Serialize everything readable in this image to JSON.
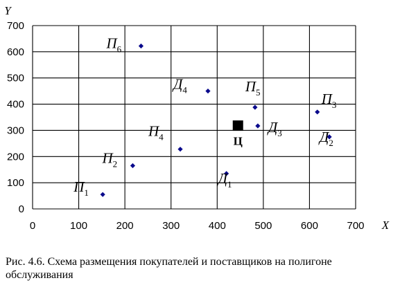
{
  "chart_data": {
    "type": "scatter",
    "xlabel": "X",
    "ylabel": "Y",
    "xlim": [
      0,
      700
    ],
    "ylim": [
      0,
      700
    ],
    "xticks": [
      "0",
      "100",
      "200",
      "300",
      "400",
      "500",
      "600",
      "700"
    ],
    "yticks": [
      "0",
      "100",
      "200",
      "300",
      "400",
      "500",
      "600",
      "700"
    ],
    "grid": true,
    "marker_color": "#0a0a8c",
    "center_color": "#000000",
    "points": [
      {
        "id": "p1",
        "letter": "П",
        "sub": "1",
        "x": 152,
        "y": 55
      },
      {
        "id": "p2",
        "letter": "П",
        "sub": "2",
        "x": 217,
        "y": 165
      },
      {
        "id": "p3",
        "letter": "П",
        "sub": "3",
        "x": 617,
        "y": 370
      },
      {
        "id": "p4",
        "letter": "П",
        "sub": "4",
        "x": 320,
        "y": 228
      },
      {
        "id": "p5",
        "letter": "П",
        "sub": "5",
        "x": 482,
        "y": 388
      },
      {
        "id": "p6",
        "letter": "П",
        "sub": "6",
        "x": 235,
        "y": 622
      },
      {
        "id": "d1",
        "letter": "Д",
        "sub": "1",
        "x": 420,
        "y": 135
      },
      {
        "id": "d2",
        "letter": "Д",
        "sub": "2",
        "x": 643,
        "y": 275
      },
      {
        "id": "d3",
        "letter": "Д",
        "sub": "3",
        "x": 488,
        "y": 317
      },
      {
        "id": "d4",
        "letter": "Д",
        "sub": "4",
        "x": 380,
        "y": 450
      }
    ],
    "center": {
      "label": "Ц",
      "x": 445,
      "y": 318
    }
  },
  "caption": "Рис. 4.6. Схема размещения покупателей и поставщиков на полигоне обслуживания"
}
